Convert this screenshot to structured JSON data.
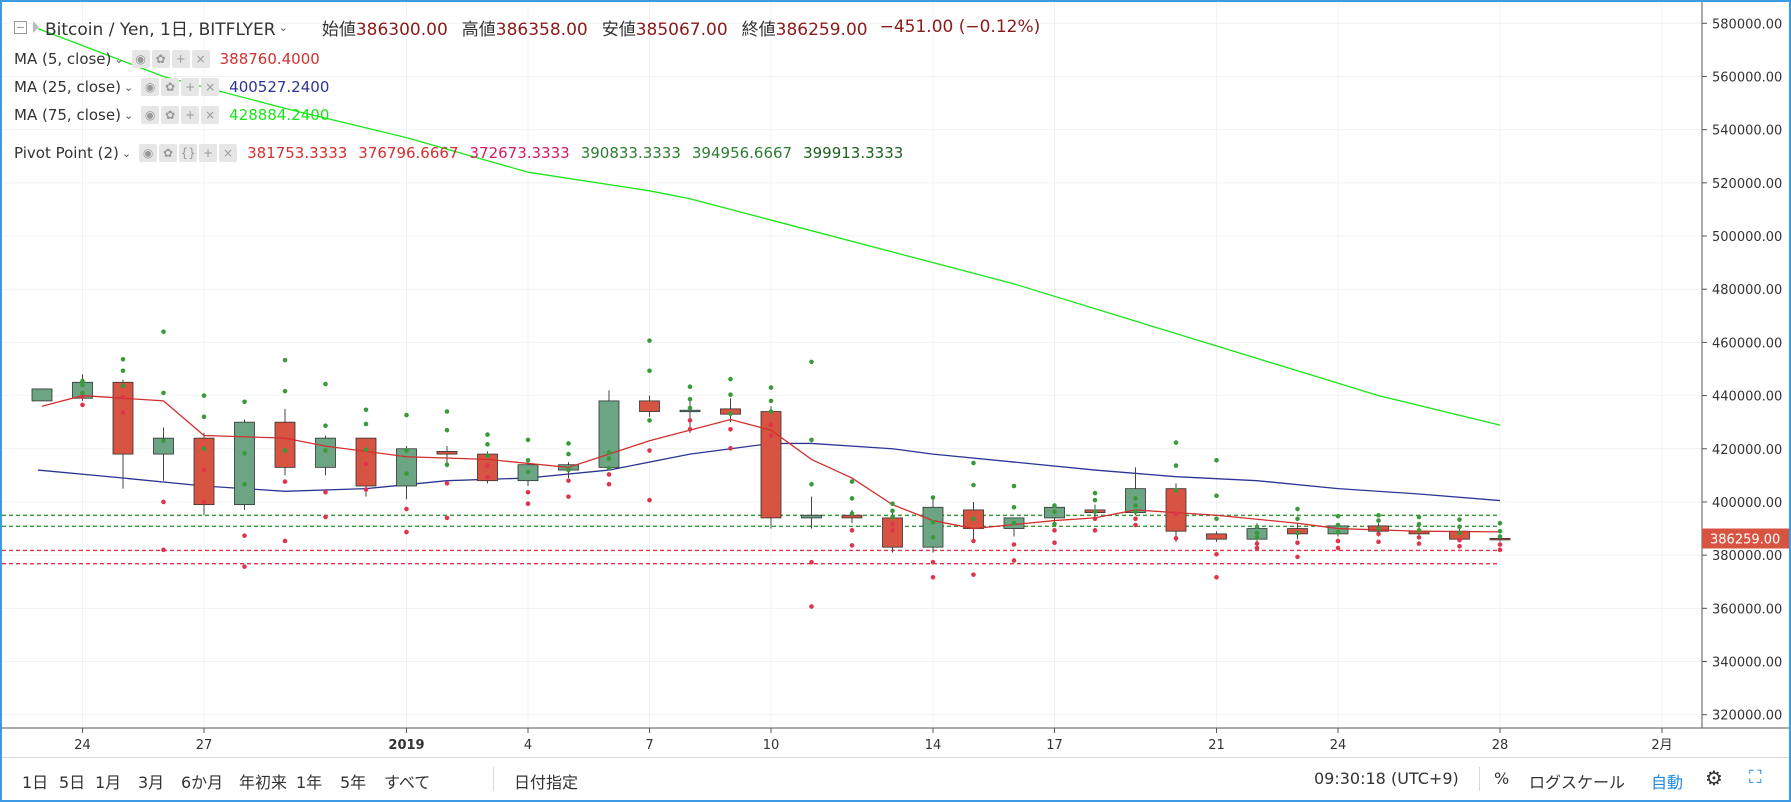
{
  "header": {
    "pair_icon": "flag-icon",
    "symbol": "Bitcoin / Yen, 1日, BITFLYER",
    "ohlc": [
      {
        "label": "始値",
        "value": "386300.00"
      },
      {
        "label": "高値",
        "value": "386358.00"
      },
      {
        "label": "安値",
        "value": "385067.00"
      },
      {
        "label": "終値",
        "value": "386259.00"
      }
    ],
    "change": "−451.00 (−0.12%)"
  },
  "indicators": {
    "ma5": {
      "name": "MA (5, close)",
      "value": "388760.4000",
      "color": "#d32f2f"
    },
    "ma25": {
      "name": "MA (25, close)",
      "value": "400527.2400",
      "color": "#2c3596"
    },
    "ma75": {
      "name": "MA (75, close)",
      "value": "428884.2400",
      "color": "#19e619"
    },
    "pivot": {
      "name": "Pivot Point (2)",
      "values": [
        "381753.3333",
        "376796.6667",
        "372673.3333",
        "390833.3333",
        "394956.6667",
        "399913.3333"
      ],
      "colors": [
        "#d32f2f",
        "#d32f2f",
        "#d81b60",
        "#2e7d32",
        "#2e7d32",
        "#1b5e20"
      ]
    }
  },
  "bottom_bar": {
    "ranges": [
      "1日",
      "5日",
      "1月",
      "3月",
      "6か月",
      "年初来",
      "1年",
      "5年",
      "すべて"
    ],
    "goto_date": "日付指定",
    "clock": "09:30:18 (UTC+9)",
    "percent": "%",
    "log_scale": "ログスケール",
    "auto": "自動",
    "settings_icon": "gear-icon",
    "fullscreen_icon": "fullscreen-icon"
  },
  "chart_data": {
    "type": "candlestick",
    "ylim": [
      315000,
      588000
    ],
    "y_ticks": [
      320000,
      340000,
      360000,
      380000,
      400000,
      420000,
      440000,
      460000,
      480000,
      500000,
      520000,
      540000,
      560000,
      580000
    ],
    "y_tick_labels": [
      "320000.00",
      "340000.00",
      "360000.00",
      "380000.00",
      "400000.00",
      "420000.00",
      "440000.00",
      "460000.00",
      "480000.00",
      "500000.00",
      "520000.00",
      "540000.00",
      "560000.00",
      "580000.00"
    ],
    "last_price_label": "386259.00",
    "last_price": 386259,
    "x_labels": [
      {
        "i": 1,
        "text": "24"
      },
      {
        "i": 4,
        "text": "27"
      },
      {
        "i": 9,
        "text": "2019"
      },
      {
        "i": 12,
        "text": "4"
      },
      {
        "i": 15,
        "text": "7"
      },
      {
        "i": 18,
        "text": "10"
      },
      {
        "i": 22,
        "text": "14"
      },
      {
        "i": 25,
        "text": "17"
      },
      {
        "i": 29,
        "text": "21"
      },
      {
        "i": 32,
        "text": "24"
      },
      {
        "i": 36,
        "text": "28"
      },
      {
        "i": 40,
        "text": "2月"
      }
    ],
    "candles": [
      [
        0,
        438000,
        442500,
        438000,
        442500
      ],
      [
        1,
        439000,
        448000,
        438000,
        445000
      ],
      [
        2,
        445000,
        446000,
        405000,
        418000
      ],
      [
        3,
        418000,
        428000,
        408000,
        424000
      ],
      [
        4,
        424000,
        426000,
        395000,
        399000
      ],
      [
        5,
        399000,
        431000,
        397000,
        430000
      ],
      [
        6,
        430000,
        435000,
        410000,
        413000
      ],
      [
        7,
        413000,
        425000,
        410000,
        424000
      ],
      [
        8,
        424000,
        424000,
        402000,
        406000
      ],
      [
        9,
        406000,
        421000,
        401000,
        420000
      ],
      [
        10,
        419000,
        421000,
        413000,
        418000
      ],
      [
        11,
        418000,
        419000,
        407000,
        408000
      ],
      [
        12,
        408000,
        416000,
        406000,
        414000
      ],
      [
        13,
        412000,
        415000,
        409000,
        414000
      ],
      [
        14,
        413000,
        442000,
        412000,
        438000
      ],
      [
        15,
        438000,
        440000,
        432000,
        434000
      ],
      [
        16,
        434000,
        439000,
        426000,
        434500
      ],
      [
        17,
        435000,
        439000,
        430000,
        433000
      ],
      [
        18,
        434000,
        436000,
        390000,
        394000
      ],
      [
        19,
        394000,
        402000,
        390000,
        395000
      ],
      [
        20,
        395000,
        397000,
        392000,
        394000
      ],
      [
        21,
        394000,
        396000,
        381000,
        383000
      ],
      [
        22,
        383000,
        402000,
        381000,
        398000
      ],
      [
        23,
        397000,
        400000,
        386000,
        390000
      ],
      [
        24,
        390000,
        394000,
        387000,
        394000
      ],
      [
        25,
        394000,
        399000,
        392000,
        398000
      ],
      [
        26,
        397000,
        399000,
        394000,
        396000
      ],
      [
        27,
        396000,
        413000,
        395000,
        405000
      ],
      [
        28,
        405000,
        407000,
        385000,
        389000
      ],
      [
        29,
        388000,
        389000,
        385000,
        386000
      ],
      [
        30,
        386000,
        392000,
        383000,
        390000
      ],
      [
        31,
        390000,
        392000,
        386000,
        388000
      ],
      [
        32,
        388000,
        392000,
        387000,
        391000
      ],
      [
        33,
        391000,
        392000,
        387000,
        389000
      ],
      [
        34,
        389000,
        391000,
        386000,
        388000
      ],
      [
        35,
        389000,
        390000,
        385000,
        386000
      ],
      [
        36,
        386300,
        386358,
        385067,
        386259
      ]
    ],
    "ma5": [
      [
        0,
        436000
      ],
      [
        1,
        440000
      ],
      [
        3,
        438000
      ],
      [
        4,
        425000
      ],
      [
        6,
        424000
      ],
      [
        7,
        421000
      ],
      [
        9,
        417000
      ],
      [
        11,
        416000
      ],
      [
        13,
        413000
      ],
      [
        14,
        418000
      ],
      [
        15,
        423000
      ],
      [
        17,
        431000
      ],
      [
        18,
        427000
      ],
      [
        19,
        416000
      ],
      [
        20,
        409000
      ],
      [
        21,
        399000
      ],
      [
        22,
        393000
      ],
      [
        23,
        390000
      ],
      [
        25,
        393000
      ],
      [
        26,
        394000
      ],
      [
        27,
        397000
      ],
      [
        28,
        396000
      ],
      [
        29,
        395000
      ],
      [
        31,
        392000
      ],
      [
        32,
        390000
      ],
      [
        34,
        389000
      ],
      [
        36,
        388760
      ]
    ],
    "ma25": [
      [
        -0.1,
        412000
      ],
      [
        2,
        409000
      ],
      [
        4,
        406000
      ],
      [
        6,
        404000
      ],
      [
        8,
        405000
      ],
      [
        10,
        408000
      ],
      [
        12,
        409000
      ],
      [
        14,
        412000
      ],
      [
        16,
        418000
      ],
      [
        18,
        422000
      ],
      [
        19,
        422000
      ],
      [
        21,
        420000
      ],
      [
        22,
        418000
      ],
      [
        24,
        415000
      ],
      [
        26,
        412000
      ],
      [
        28,
        409500
      ],
      [
        30,
        408000
      ],
      [
        32,
        405000
      ],
      [
        34,
        403000
      ],
      [
        36,
        400527
      ]
    ],
    "ma75": [
      [
        -0.1,
        578000
      ],
      [
        3,
        560000
      ],
      [
        6,
        548000
      ],
      [
        9,
        537000
      ],
      [
        12,
        524000
      ],
      [
        15,
        517000
      ],
      [
        16,
        514000
      ],
      [
        18,
        506000
      ],
      [
        21,
        494000
      ],
      [
        24,
        482000
      ],
      [
        27,
        468000
      ],
      [
        30,
        454000
      ],
      [
        33,
        440000
      ],
      [
        36,
        428884
      ]
    ],
    "pivot_levels": [
      381753.3333,
      376796.6667,
      372673.3333,
      390833.3333,
      394956.6667,
      399913.3333
    ]
  }
}
